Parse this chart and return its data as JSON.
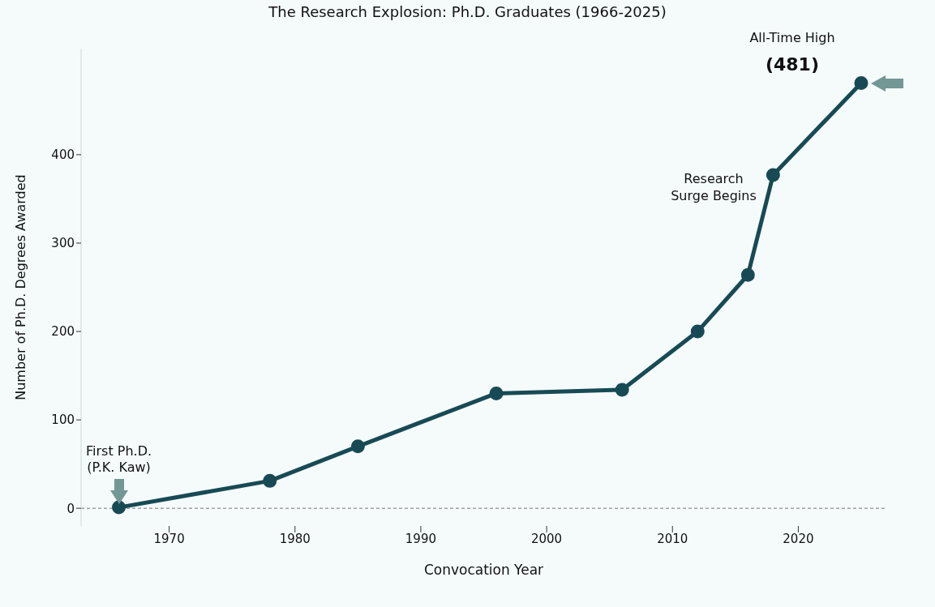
{
  "chart_data": {
    "type": "line",
    "title": "The Research Explosion: Ph.D. Graduates (1966-2025)",
    "xlabel": "Convocation Year",
    "ylabel": "Number of Ph.D. Degrees Awarded",
    "x": [
      1966,
      1978,
      1985,
      1996,
      2006,
      2012,
      2016,
      2018,
      2025
    ],
    "series": [
      {
        "color": "#174a54",
        "values": [
          1,
          31,
          70,
          130,
          134,
          200,
          264,
          377,
          481
        ]
      }
    ],
    "xlim": [
      1963,
      2027
    ],
    "xticks": [
      1970,
      1980,
      1990,
      2000,
      2010,
      2020
    ],
    "ylim": [
      -20,
      520
    ],
    "yticks": [
      0,
      100,
      200,
      300,
      400
    ],
    "ref_lines": [
      {
        "axis": "y",
        "value": 0,
        "color": "#777777",
        "line_style": "dashed"
      }
    ],
    "annotations": [
      {
        "text": "First Ph.D.\n(P.K. Kaw)",
        "x": 1966,
        "y": 1
      },
      "All-Time High",
      {
        "text": "(481)",
        "x": 2025,
        "y": 481
      },
      "Research\nSurge Begins"
    ],
    "grid": false,
    "marker": "circle",
    "line_style": "solid"
  }
}
